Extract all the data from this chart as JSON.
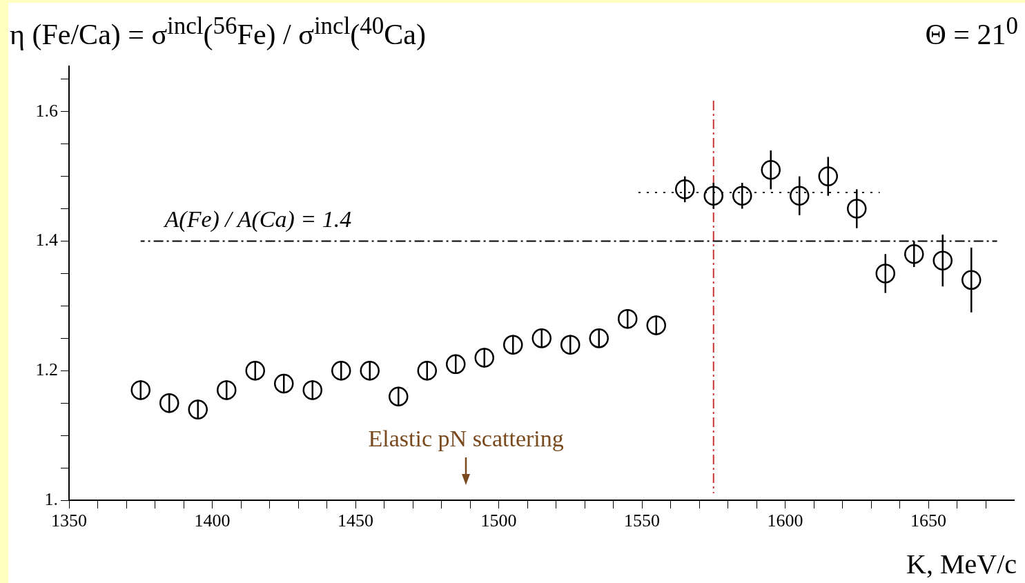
{
  "chart_data": {
    "type": "scatter",
    "title": "η (Fe/Ca) = σ$^{incl}$($^{56}$Fe) / σ$^{incl}$($^{40}$Ca)",
    "subtitle": "Θ = 21$^{0}$",
    "xlabel": "K, MeV/c",
    "x": [
      1375,
      1385,
      1395,
      1405,
      1415,
      1425,
      1435,
      1445,
      1455,
      1465,
      1475,
      1485,
      1495,
      1505,
      1515,
      1525,
      1535,
      1545,
      1555,
      1565,
      1575,
      1585,
      1595,
      1605,
      1615,
      1625,
      1635,
      1645,
      1655,
      1665
    ],
    "series": [
      {
        "color": "#000000",
        "marker": "circle",
        "values": [
          1.17,
          1.15,
          1.14,
          1.17,
          1.2,
          1.18,
          1.17,
          1.2,
          1.2,
          1.16,
          1.2,
          1.21,
          1.22,
          1.24,
          1.25,
          1.24,
          1.25,
          1.28,
          1.27,
          1.48,
          1.47,
          1.47,
          1.51,
          1.47,
          1.5,
          1.45,
          1.35,
          1.38,
          1.37,
          1.34
        ],
        "errors": [
          0.015,
          0.015,
          0.015,
          0.015,
          0.015,
          0.015,
          0.015,
          0.015,
          0.015,
          0.015,
          0.015,
          0.015,
          0.015,
          0.015,
          0.015,
          0.015,
          0.015,
          0.015,
          0.015,
          0.02,
          0.02,
          0.02,
          0.03,
          0.03,
          0.03,
          0.03,
          0.03,
          0.02,
          0.04,
          0.05
        ]
      },
      {
        "type": "line",
        "color": "#000000",
        "line_style": "dotted",
        "marker": "none",
        "x": [
          1548,
          1633
        ],
        "values": [
          1.475,
          1.475
        ]
      },
      {
        "type": "line",
        "color": "#000000",
        "line_style": "dashed",
        "marker": "none",
        "x": [
          1375,
          1674
        ],
        "values": [
          1.4,
          1.4
        ]
      }
    ],
    "xlim": [
      1350,
      1680
    ],
    "xticks": [
      1350,
      {
        "value": 1360,
        "label": null
      },
      {
        "value": 1370,
        "label": null
      },
      {
        "value": 1380,
        "label": null
      },
      {
        "value": 1390,
        "label": null
      },
      1400,
      {
        "value": 1410,
        "label": null
      },
      {
        "value": 1420,
        "label": null
      },
      {
        "value": 1430,
        "label": null
      },
      {
        "value": 1440,
        "label": null
      },
      1450,
      {
        "value": 1460,
        "label": null
      },
      {
        "value": 1470,
        "label": null
      },
      {
        "value": 1480,
        "label": null
      },
      {
        "value": 1490,
        "label": null
      },
      1500,
      {
        "value": 1510,
        "label": null
      },
      {
        "value": 1520,
        "label": null
      },
      {
        "value": 1530,
        "label": null
      },
      {
        "value": 1540,
        "label": null
      },
      1550,
      {
        "value": 1560,
        "label": null
      },
      {
        "value": 1570,
        "label": null
      },
      {
        "value": 1580,
        "label": null
      },
      {
        "value": 1590,
        "label": null
      },
      1600,
      {
        "value": 1610,
        "label": null
      },
      {
        "value": 1620,
        "label": null
      },
      {
        "value": 1630,
        "label": null
      },
      {
        "value": 1640,
        "label": null
      },
      1650,
      {
        "value": 1660,
        "label": null
      },
      {
        "value": 1670,
        "label": null
      }
    ],
    "ylim": [
      1,
      1.67
    ],
    "yticks": [
      {
        "value": 1,
        "label": "1."
      },
      {
        "value": 1.05,
        "label": null
      },
      {
        "value": 1.1,
        "label": null
      },
      {
        "value": 1.15,
        "label": null
      },
      1.2,
      {
        "value": 1.25,
        "label": null
      },
      {
        "value": 1.3,
        "label": null
      },
      {
        "value": 1.35,
        "label": null
      },
      1.4,
      {
        "value": 1.45,
        "label": null
      },
      {
        "value": 1.5,
        "label": null
      },
      {
        "value": 1.55,
        "label": null
      },
      1.6,
      {
        "value": 1.65,
        "label": null
      }
    ],
    "ref_lines": [
      {
        "axis": "x",
        "value": 1575,
        "color": "#cc3333",
        "line_style": "dashed"
      }
    ],
    "annotations": [
      {
        "text": "A(Fe) / A(Ca) = 1.4",
        "x": 1416,
        "y": 1.4
      },
      "Elastic pN scattering"
    ],
    "grid": false
  }
}
